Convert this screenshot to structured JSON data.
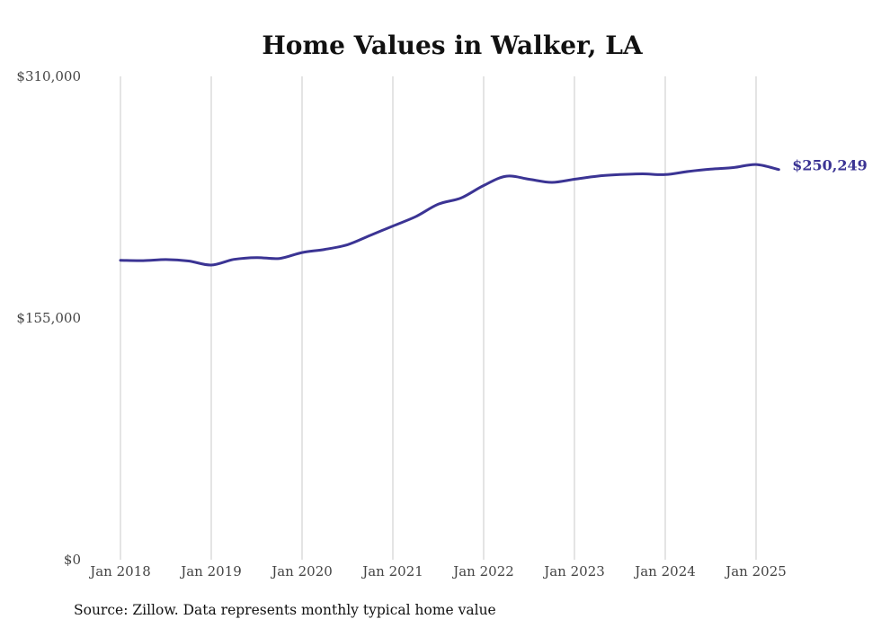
{
  "chart_data": {
    "type": "line",
    "title": "Home Values in Walker, LA",
    "source_note": "Source: Zillow. Data represents monthly typical home value",
    "ylim": [
      0,
      310000
    ],
    "y_ticks": [
      {
        "value": 310000,
        "label": "$310,000"
      },
      {
        "value": 155000,
        "label": "$155,000"
      },
      {
        "value": 0,
        "label": "$0"
      }
    ],
    "x_ticks": [
      {
        "value": "2018-01",
        "label": "Jan 2018"
      },
      {
        "value": "2019-01",
        "label": "Jan 2019"
      },
      {
        "value": "2020-01",
        "label": "Jan 2020"
      },
      {
        "value": "2021-01",
        "label": "Jan 2021"
      },
      {
        "value": "2022-01",
        "label": "Jan 2022"
      },
      {
        "value": "2023-01",
        "label": "Jan 2023"
      },
      {
        "value": "2024-01",
        "label": "Jan 2024"
      },
      {
        "value": "2025-01",
        "label": "Jan 2025"
      }
    ],
    "grid": {
      "vertical": true,
      "horizontal": false
    },
    "line_color": "#3b3494",
    "end_label": "$250,249",
    "series": [
      {
        "x": [
          "2018-01",
          "2018-04",
          "2018-07",
          "2018-10",
          "2019-01",
          "2019-04",
          "2019-07",
          "2019-10",
          "2020-01",
          "2020-04",
          "2020-07",
          "2020-10",
          "2021-01",
          "2021-04",
          "2021-07",
          "2021-10",
          "2022-01",
          "2022-04",
          "2022-07",
          "2022-10",
          "2023-01",
          "2023-04",
          "2023-07",
          "2023-10",
          "2024-01",
          "2024-04",
          "2024-07",
          "2024-10",
          "2025-01",
          "2025-04"
        ],
        "values": [
          192000,
          191800,
          192500,
          191600,
          189000,
          192600,
          193800,
          193200,
          197000,
          199000,
          202000,
          208000,
          214000,
          220000,
          228000,
          232000,
          240000,
          246000,
          244000,
          242000,
          244000,
          246000,
          247000,
          247500,
          247000,
          249000,
          250500,
          251500,
          253500,
          250249
        ]
      }
    ]
  }
}
